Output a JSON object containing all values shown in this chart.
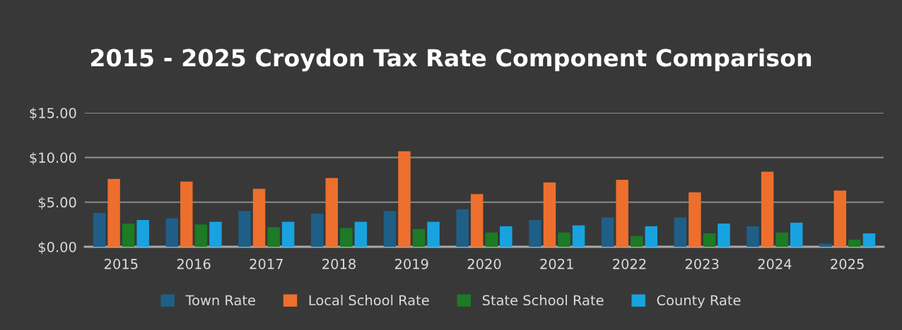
{
  "chart_data": {
    "type": "bar",
    "title": "2015 - 2025 Croydon Tax Rate Component Comparison",
    "categories": [
      "2015",
      "2016",
      "2017",
      "2018",
      "2019",
      "2020",
      "2021",
      "2022",
      "2023",
      "2024",
      "2025"
    ],
    "series": [
      {
        "name": "Town Rate",
        "color": "#1f5f87",
        "values": [
          3.8,
          3.2,
          4.0,
          3.7,
          4.0,
          4.2,
          3.0,
          3.3,
          3.3,
          2.3,
          0.35
        ]
      },
      {
        "name": "Local School Rate",
        "color": "#ee6f2d",
        "values": [
          7.6,
          7.3,
          6.5,
          7.7,
          10.7,
          5.9,
          7.2,
          7.5,
          6.1,
          8.4,
          6.3
        ]
      },
      {
        "name": "State School Rate",
        "color": "#1d7a25",
        "values": [
          2.6,
          2.5,
          2.2,
          2.1,
          2.0,
          1.6,
          1.6,
          1.2,
          1.5,
          1.6,
          0.8
        ]
      },
      {
        "name": "County Rate",
        "color": "#18a3e0",
        "values": [
          3.0,
          2.8,
          2.8,
          2.8,
          2.8,
          2.3,
          2.4,
          2.3,
          2.6,
          2.7,
          1.5
        ]
      }
    ],
    "ylim": [
      0,
      15
    ],
    "yticks": [
      {
        "value": 0,
        "label": "$0.00"
      },
      {
        "value": 5,
        "label": "$5.00"
      },
      {
        "value": 10,
        "label": "$10.00"
      },
      {
        "value": 15,
        "label": "$15.00"
      }
    ],
    "grid": "y",
    "legend": "bottom"
  }
}
